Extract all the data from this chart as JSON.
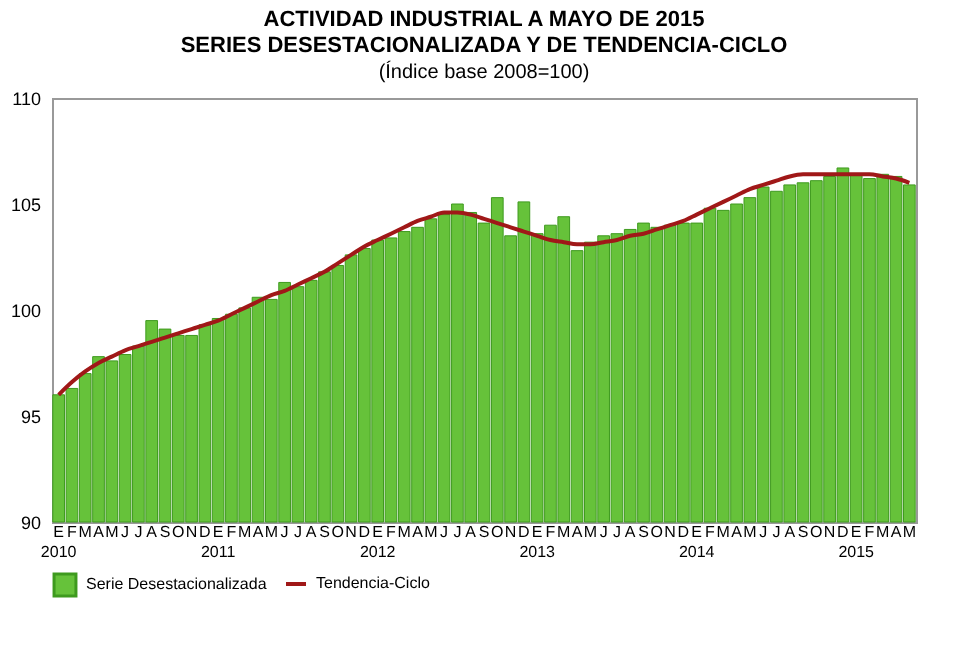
{
  "chart_data": {
    "type": "bar",
    "title": "ACTIVIDAD INDUSTRIAL A MAYO DE 2015",
    "subtitle": "SERIES DESESTACIONALIZADA  Y DE TENDENCIA-CICLO",
    "annotations": [
      "(Índice base 2008=100)"
    ],
    "categories": [
      "E\n2010",
      "F",
      "M",
      "A",
      "M",
      "J",
      "J",
      "A",
      "S",
      "O",
      "N",
      "D",
      "E\n2011",
      "F",
      "M",
      "A",
      "M",
      "J",
      "J",
      "A",
      "S",
      "O",
      "N",
      "D",
      "E\n2012",
      "F",
      "M",
      "A",
      "M",
      "J",
      "J",
      "A",
      "S",
      "O",
      "N",
      "D",
      "E\n2013",
      "F",
      "M",
      "A",
      "M",
      "J",
      "J",
      "A",
      "S",
      "O",
      "N",
      "D",
      "E\n2014",
      "F",
      "M",
      "A",
      "M",
      "J",
      "J",
      "A",
      "S",
      "O",
      "N",
      "D",
      "E\n2015",
      "F",
      "M",
      "A",
      "M"
    ],
    "series": [
      {
        "name": "Serie Desestacionalizada",
        "color": "#66c23a",
        "values": [
          96.0,
          96.3,
          97.0,
          97.8,
          97.6,
          97.9,
          98.3,
          99.5,
          99.1,
          98.8,
          98.8,
          99.3,
          99.6,
          99.8,
          100.1,
          100.6,
          100.5,
          101.3,
          101.1,
          101.4,
          101.8,
          102.1,
          102.6,
          102.9,
          103.3,
          103.4,
          103.7,
          103.9,
          104.3,
          104.5,
          105.0,
          104.6,
          104.1,
          105.3,
          103.5,
          105.1,
          103.6,
          104.0,
          104.4,
          102.8,
          103.2,
          103.5,
          103.6,
          103.8,
          104.1,
          103.9,
          104.0,
          104.1,
          104.1,
          104.8,
          104.7,
          105.0,
          105.3,
          105.8,
          105.6,
          105.9,
          106.0,
          106.1,
          106.3,
          106.7,
          106.4,
          106.2,
          106.4,
          106.3,
          105.9
        ]
      },
      {
        "name": "Tendencia-Ciclo",
        "type": "line",
        "color": "#a01818",
        "values": [
          96.0,
          96.6,
          97.1,
          97.5,
          97.8,
          98.1,
          98.3,
          98.5,
          98.7,
          98.9,
          99.1,
          99.3,
          99.5,
          99.8,
          100.1,
          100.4,
          100.7,
          100.9,
          101.2,
          101.5,
          101.8,
          102.2,
          102.6,
          103.0,
          103.3,
          103.6,
          103.9,
          104.2,
          104.4,
          104.6,
          104.6,
          104.5,
          104.3,
          104.1,
          103.9,
          103.7,
          103.5,
          103.3,
          103.2,
          103.1,
          103.1,
          103.2,
          103.3,
          103.5,
          103.6,
          103.8,
          104.0,
          104.2,
          104.5,
          104.8,
          105.1,
          105.4,
          105.7,
          105.9,
          106.1,
          106.3,
          106.4,
          106.4,
          106.4,
          106.4,
          106.4,
          106.4,
          106.3,
          106.2,
          106.0
        ]
      }
    ],
    "ylim": [
      90,
      110
    ],
    "yticks": [
      90,
      95,
      100,
      105,
      110
    ],
    "grid": false,
    "legend": "bottom"
  }
}
